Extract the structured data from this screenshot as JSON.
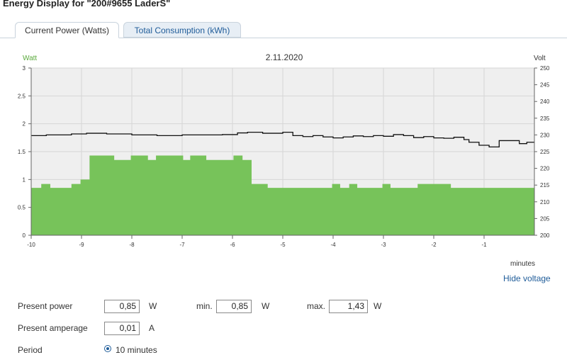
{
  "page": {
    "title": "Energy Display for \"200#9655 LaderS\""
  },
  "tabs": [
    {
      "label": "Current Power (Watts)",
      "active": true
    },
    {
      "label": "Total Consumption (kWh)",
      "active": false
    }
  ],
  "chart_data": {
    "type": "area",
    "title": "2.11.2020",
    "y_left_label": "Watt",
    "y_right_label": "Volt",
    "xlabel": "minutes",
    "xlim": [
      -10,
      0
    ],
    "ylim_left": [
      0,
      3
    ],
    "ylim_right": [
      200,
      250
    ],
    "x_ticks": [
      -10,
      -9,
      -8,
      -7,
      -6,
      -5,
      -4,
      -3,
      -2,
      -1
    ],
    "y_left_ticks": [
      "0",
      "0.5",
      "1",
      "1.5",
      "2",
      "2.5",
      "3"
    ],
    "y_right_ticks": [
      "200",
      "205",
      "210",
      "215",
      "220",
      "225",
      "230",
      "235",
      "240",
      "245",
      "250"
    ],
    "grid": true,
    "colors": {
      "power": "#77c35a",
      "voltage": "#111111",
      "plot_bg": "#efefef",
      "left_axis_label": "#5aaa3c"
    },
    "series": [
      {
        "name": "Watt",
        "axis": "left",
        "kind": "step-area",
        "x": [
          -10,
          -9.8,
          -9.62,
          -9.2,
          -9.02,
          -8.84,
          -8.35,
          -8.02,
          -7.68,
          -7.52,
          -6.98,
          -6.84,
          -6.52,
          -5.98,
          -5.8,
          -5.62,
          -5.3,
          -4.02,
          -3.86,
          -3.68,
          -3.52,
          -3.02,
          -2.86,
          -2.32,
          -1.66,
          0
        ],
        "y": [
          0.85,
          0.92,
          0.85,
          0.92,
          1.0,
          1.43,
          1.35,
          1.43,
          1.35,
          1.43,
          1.35,
          1.43,
          1.35,
          1.43,
          1.35,
          0.92,
          0.85,
          0.92,
          0.85,
          0.92,
          0.85,
          0.92,
          0.85,
          0.92,
          0.85,
          0.85
        ]
      },
      {
        "name": "Volt",
        "axis": "right",
        "kind": "step-line",
        "x": [
          -10,
          -9.7,
          -9.2,
          -8.9,
          -8.5,
          -8.0,
          -7.5,
          -7.0,
          -6.6,
          -6.2,
          -5.9,
          -5.7,
          -5.4,
          -5.0,
          -4.8,
          -4.6,
          -4.4,
          -4.2,
          -4.0,
          -3.8,
          -3.6,
          -3.4,
          -3.2,
          -3.0,
          -2.8,
          -2.6,
          -2.4,
          -2.2,
          -2.0,
          -1.8,
          -1.6,
          -1.4,
          -1.3,
          -1.1,
          -0.9,
          -0.7,
          -0.5,
          -0.3,
          -0.15,
          0
        ],
        "y": [
          229.8,
          230.0,
          230.3,
          230.5,
          230.3,
          230.0,
          229.8,
          230.0,
          230.0,
          230.1,
          230.6,
          230.8,
          230.5,
          230.8,
          229.8,
          229.5,
          229.8,
          229.4,
          229.1,
          229.4,
          229.7,
          229.5,
          229.8,
          229.6,
          230.1,
          229.8,
          229.2,
          229.5,
          229.1,
          229.0,
          229.3,
          228.6,
          227.8,
          226.9,
          226.4,
          228.3,
          228.3,
          227.4,
          227.8,
          227.8
        ]
      }
    ]
  },
  "toggle_voltage": {
    "label": "Hide voltage"
  },
  "stats": {
    "present_power": {
      "label": "Present power",
      "value": "0,85",
      "unit": "W"
    },
    "min": {
      "label": "min.",
      "value": "0,85",
      "unit": "W"
    },
    "max": {
      "label": "max.",
      "value": "1,43",
      "unit": "W"
    },
    "present_amperage": {
      "label": "Present amperage",
      "value": "0,01",
      "unit": "A"
    },
    "period": {
      "label": "Period",
      "option": "10 minutes"
    }
  }
}
